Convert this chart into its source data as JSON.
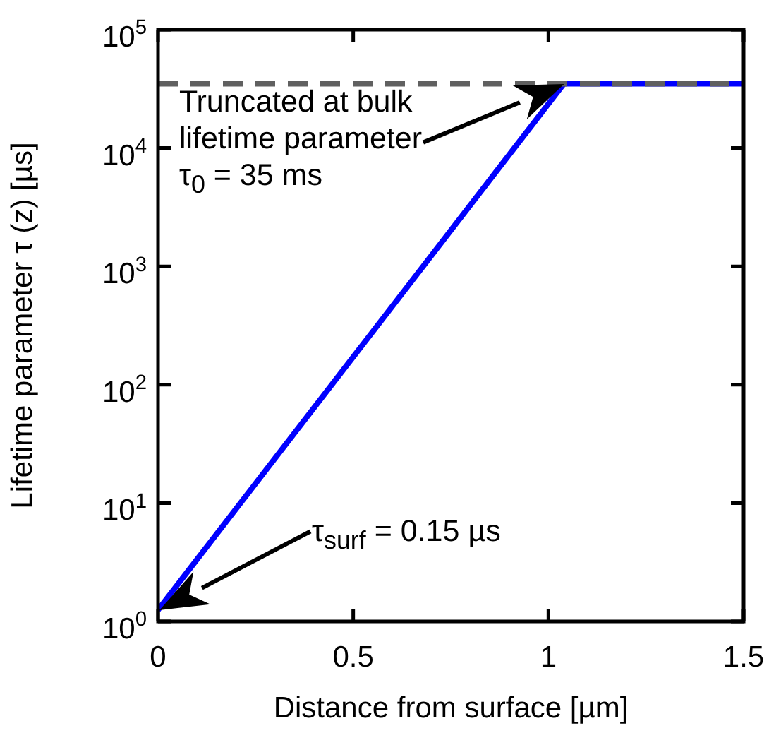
{
  "chart_data": {
    "type": "line",
    "xlabel": "Distance from surface [µm]",
    "ylabel": "Lifetime parameter τ (z) [µs]",
    "series": [
      {
        "color": "#0000ff",
        "x": [
          0,
          1.04,
          1.5
        ],
        "values": [
          1.25,
          35000,
          35000
        ],
        "line_style": "solid"
      },
      {
        "color": "#606060",
        "x": [
          0,
          1.5
        ],
        "values": [
          35000,
          35000
        ],
        "line_style": "dashed"
      }
    ],
    "xlim": [
      0,
      1.5
    ],
    "xticks": [
      0,
      0.5,
      1,
      1.5
    ],
    "ylim": [
      1,
      100000
    ],
    "yticks": [
      {
        "value": 1,
        "label": "10$^{0}$"
      },
      {
        "value": 10,
        "label": "10$^{1}$"
      },
      {
        "value": 100,
        "label": "10$^{2}$"
      },
      {
        "value": 1000,
        "label": "10$^{3}$"
      },
      {
        "value": 10000,
        "label": "10$^{4}$"
      },
      {
        "value": 100000,
        "label": "10$^{5}$"
      }
    ],
    "log": "y",
    "grid": false,
    "legend": false,
    "marker": "none",
    "annotations": [
      "Truncated at bulk\nlifetime parameter\nτ$_{0}$ = 35 ms",
      "τ$_{surf}$ = 0.15 µs"
    ]
  }
}
